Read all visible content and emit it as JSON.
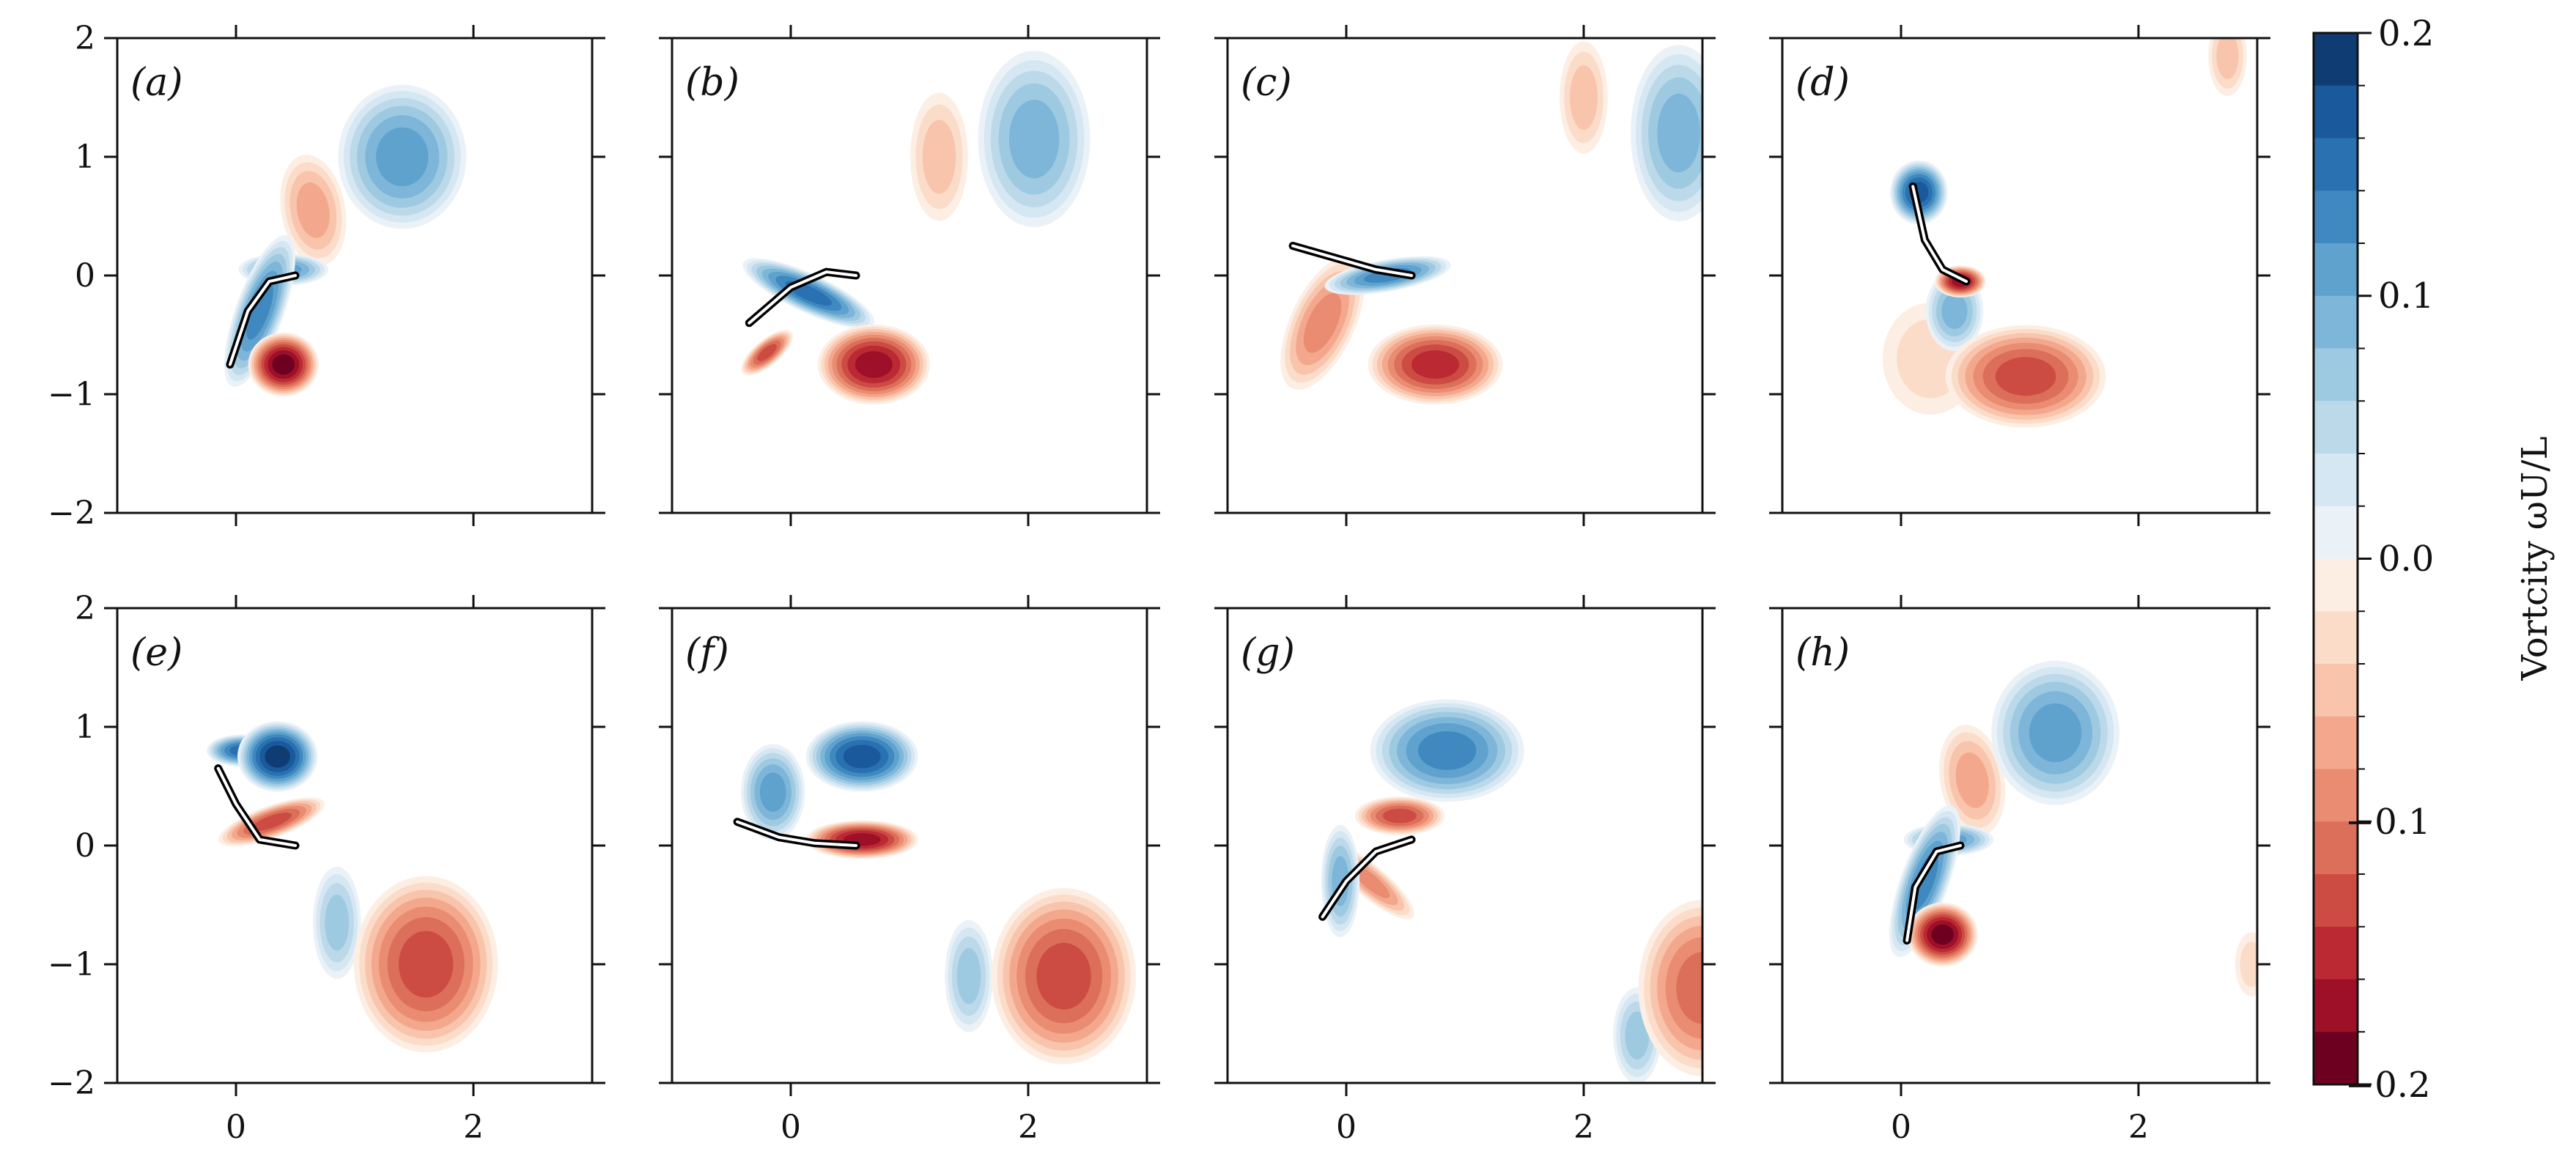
{
  "chart_data": {
    "type": "contour",
    "xlim": [
      -1,
      3
    ],
    "ylim": [
      -2,
      2
    ],
    "xticks": [
      0,
      2
    ],
    "xtick_labels": [
      "0",
      "2"
    ],
    "yticks": [
      2,
      1,
      0,
      -1,
      -2
    ],
    "ytick_labels": [
      "2",
      "1",
      "0",
      "−1",
      "−2"
    ],
    "colorbar": {
      "label": "Vortcity ωU/L",
      "min": -0.2,
      "max": 0.2,
      "levels": 20,
      "ticks": [
        "0.2",
        "0.1",
        "0.0",
        "−0.1",
        "−0.2"
      ],
      "colors": [
        "#6d0021",
        "#9e1027",
        "#bb2a33",
        "#cc4c44",
        "#dc6f59",
        "#e98c72",
        "#f3a88d",
        "#f8c4ab",
        "#fbdcc9",
        "#fdeee4",
        "#eaf2f8",
        "#d5e7f2",
        "#bcd9ea",
        "#9ecae1",
        "#7eb6d9",
        "#5fa2cd",
        "#3f89c0",
        "#2a71b1",
        "#1a5a9c",
        "#0f3d73"
      ]
    },
    "panels": [
      {
        "label": "(a)",
        "plate": [
          [
            -0.05,
            -0.75
          ],
          [
            0.1,
            -0.3
          ],
          [
            0.28,
            -0.05
          ],
          [
            0.5,
            0
          ]
        ],
        "vortices": [
          {
            "x": 1.4,
            "y": 1.0,
            "rx": 0.4,
            "ry": 0.45,
            "s": 0.12,
            "rot": 0
          },
          {
            "x": 0.65,
            "y": 0.55,
            "rx": 0.2,
            "ry": 0.35,
            "s": -0.08,
            "rot": -10
          },
          {
            "x": 0.4,
            "y": -0.75,
            "rx": 0.22,
            "ry": 0.2,
            "s": -0.2,
            "rot": 0
          },
          {
            "x": 0.2,
            "y": -0.3,
            "rx": 0.15,
            "ry": 0.5,
            "s": 0.14,
            "rot": 20
          },
          {
            "x": 0.4,
            "y": 0.05,
            "rx": 0.28,
            "ry": 0.1,
            "s": 0.12,
            "rot": 0
          }
        ]
      },
      {
        "label": "(b)",
        "plate": [
          [
            -0.35,
            -0.4
          ],
          [
            0,
            -0.1
          ],
          [
            0.3,
            0.03
          ],
          [
            0.55,
            0
          ]
        ],
        "vortices": [
          {
            "x": 2.05,
            "y": 1.15,
            "rx": 0.35,
            "ry": 0.55,
            "s": 0.11,
            "rot": 0
          },
          {
            "x": 1.25,
            "y": 1.0,
            "rx": 0.18,
            "ry": 0.4,
            "s": -0.06,
            "rot": 0
          },
          {
            "x": 0.7,
            "y": -0.75,
            "rx": 0.35,
            "ry": 0.25,
            "s": -0.17,
            "rot": 0
          },
          {
            "x": 0.15,
            "y": -0.15,
            "rx": 0.45,
            "ry": 0.12,
            "s": 0.16,
            "rot": 25
          },
          {
            "x": -0.2,
            "y": -0.65,
            "rx": 0.2,
            "ry": 0.08,
            "s": -0.14,
            "rot": -40
          }
        ]
      },
      {
        "label": "(c)",
        "plate": [
          [
            -0.45,
            0.25
          ],
          [
            -0.1,
            0.15
          ],
          [
            0.25,
            0.05
          ],
          [
            0.55,
            0
          ]
        ],
        "vortices": [
          {
            "x": 2.8,
            "y": 1.2,
            "rx": 0.3,
            "ry": 0.55,
            "s": 0.1,
            "rot": 0
          },
          {
            "x": 2.0,
            "y": 1.5,
            "rx": 0.15,
            "ry": 0.35,
            "s": -0.05,
            "rot": 0
          },
          {
            "x": 0.75,
            "y": -0.75,
            "rx": 0.42,
            "ry": 0.25,
            "s": -0.16,
            "rot": 0
          },
          {
            "x": 0.35,
            "y": 0.0,
            "rx": 0.4,
            "ry": 0.1,
            "s": 0.15,
            "rot": -10
          },
          {
            "x": -0.2,
            "y": -0.4,
            "rx": 0.2,
            "ry": 0.45,
            "s": -0.1,
            "rot": 25
          }
        ]
      },
      {
        "label": "(d)",
        "plate": [
          [
            0.1,
            0.75
          ],
          [
            0.2,
            0.3
          ],
          [
            0.35,
            0.05
          ],
          [
            0.55,
            -0.05
          ]
        ],
        "vortices": [
          {
            "x": 0.15,
            "y": 0.7,
            "rx": 0.18,
            "ry": 0.2,
            "s": 0.17,
            "rot": 0
          },
          {
            "x": 0.45,
            "y": -0.3,
            "rx": 0.18,
            "ry": 0.25,
            "s": 0.1,
            "rot": 0
          },
          {
            "x": 1.05,
            "y": -0.85,
            "rx": 0.5,
            "ry": 0.32,
            "s": -0.14,
            "rot": 0
          },
          {
            "x": 0.5,
            "y": -0.05,
            "rx": 0.16,
            "ry": 0.1,
            "s": -0.17,
            "rot": 0
          },
          {
            "x": 0.25,
            "y": -0.7,
            "rx": 0.3,
            "ry": 0.35,
            "s": -0.04,
            "rot": 0
          },
          {
            "x": 2.75,
            "y": 1.85,
            "rx": 0.12,
            "ry": 0.25,
            "s": -0.05,
            "rot": 0
          }
        ]
      },
      {
        "label": "(e)",
        "plate": [
          [
            -0.15,
            0.65
          ],
          [
            0,
            0.35
          ],
          [
            0.2,
            0.05
          ],
          [
            0.5,
            0
          ]
        ],
        "vortices": [
          {
            "x": 0.35,
            "y": 0.75,
            "rx": 0.25,
            "ry": 0.22,
            "s": 0.2,
            "rot": 0
          },
          {
            "x": 0.05,
            "y": 0.8,
            "rx": 0.22,
            "ry": 0.1,
            "s": 0.16,
            "rot": 0
          },
          {
            "x": 0.3,
            "y": 0.2,
            "rx": 0.35,
            "ry": 0.1,
            "s": -0.14,
            "rot": -20
          },
          {
            "x": 1.6,
            "y": -1.0,
            "rx": 0.45,
            "ry": 0.55,
            "s": -0.13,
            "rot": 0
          },
          {
            "x": 0.85,
            "y": -0.65,
            "rx": 0.15,
            "ry": 0.35,
            "s": 0.08,
            "rot": 0
          }
        ]
      },
      {
        "label": "(f)",
        "plate": [
          [
            -0.45,
            0.2
          ],
          [
            -0.1,
            0.07
          ],
          [
            0.2,
            0.02
          ],
          [
            0.55,
            0
          ]
        ],
        "vortices": [
          {
            "x": 0.6,
            "y": 0.75,
            "rx": 0.35,
            "ry": 0.22,
            "s": 0.17,
            "rot": 0
          },
          {
            "x": -0.15,
            "y": 0.45,
            "rx": 0.2,
            "ry": 0.3,
            "s": 0.12,
            "rot": 0
          },
          {
            "x": 0.6,
            "y": 0.05,
            "rx": 0.35,
            "ry": 0.12,
            "s": -0.17,
            "rot": 0
          },
          {
            "x": 2.3,
            "y": -1.1,
            "rx": 0.45,
            "ry": 0.55,
            "s": -0.13,
            "rot": 0
          },
          {
            "x": 1.5,
            "y": -1.1,
            "rx": 0.15,
            "ry": 0.35,
            "s": 0.08,
            "rot": 0
          }
        ]
      },
      {
        "label": "(g)",
        "plate": [
          [
            -0.2,
            -0.6
          ],
          [
            0,
            -0.3
          ],
          [
            0.25,
            -0.05
          ],
          [
            0.55,
            0.05
          ]
        ],
        "vortices": [
          {
            "x": 0.85,
            "y": 0.8,
            "rx": 0.48,
            "ry": 0.32,
            "s": 0.13,
            "rot": 0
          },
          {
            "x": 0.45,
            "y": 0.25,
            "rx": 0.28,
            "ry": 0.12,
            "s": -0.15,
            "rot": 0
          },
          {
            "x": 0.2,
            "y": -0.3,
            "rx": 0.35,
            "ry": 0.1,
            "s": -0.1,
            "rot": 40
          },
          {
            "x": -0.05,
            "y": -0.3,
            "rx": 0.12,
            "ry": 0.35,
            "s": 0.1,
            "rot": 0
          },
          {
            "x": 3.0,
            "y": -1.2,
            "rx": 0.4,
            "ry": 0.55,
            "s": -0.12,
            "rot": 0
          },
          {
            "x": 2.45,
            "y": -1.6,
            "rx": 0.15,
            "ry": 0.3,
            "s": 0.08,
            "rot": 0
          }
        ]
      },
      {
        "label": "(h)",
        "plate": [
          [
            0.05,
            -0.8
          ],
          [
            0.12,
            -0.35
          ],
          [
            0.3,
            -0.05
          ],
          [
            0.5,
            0
          ]
        ],
        "vortices": [
          {
            "x": 1.3,
            "y": 0.95,
            "rx": 0.4,
            "ry": 0.45,
            "s": 0.12,
            "rot": 0
          },
          {
            "x": 0.6,
            "y": 0.55,
            "rx": 0.2,
            "ry": 0.35,
            "s": -0.08,
            "rot": -10
          },
          {
            "x": 0.35,
            "y": -0.75,
            "rx": 0.22,
            "ry": 0.2,
            "s": -0.2,
            "rot": 0
          },
          {
            "x": 0.2,
            "y": -0.3,
            "rx": 0.15,
            "ry": 0.5,
            "s": 0.14,
            "rot": 20
          },
          {
            "x": 0.4,
            "y": 0.05,
            "rx": 0.28,
            "ry": 0.1,
            "s": 0.12,
            "rot": 0
          },
          {
            "x": 2.95,
            "y": -1.0,
            "rx": 0.1,
            "ry": 0.2,
            "s": -0.04,
            "rot": 0
          }
        ]
      }
    ]
  }
}
